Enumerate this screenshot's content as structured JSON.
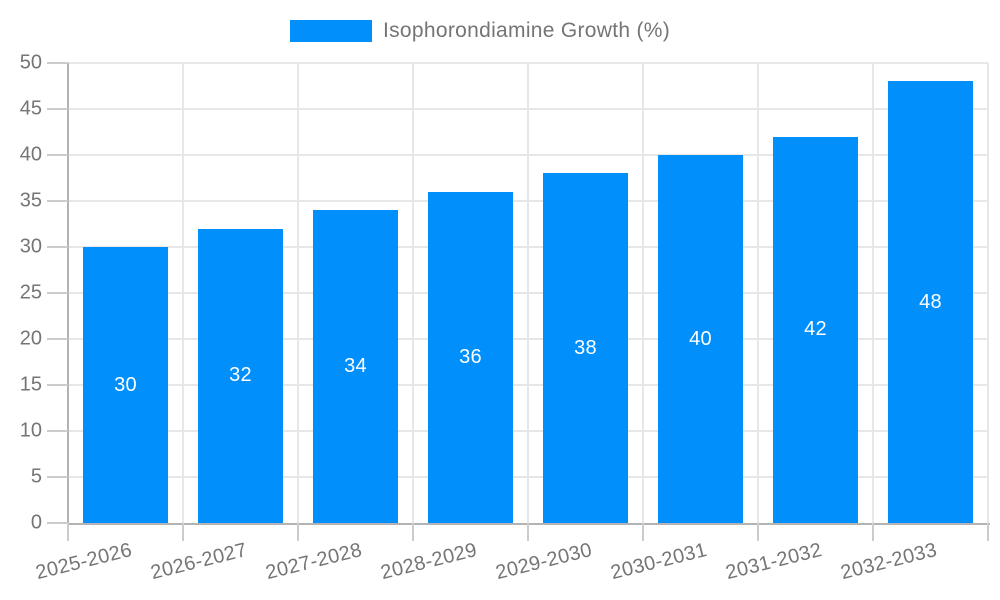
{
  "chart_data": {
    "type": "bar",
    "title": "",
    "legend": {
      "label": "Isophorondiamine Growth (%)",
      "position": "top"
    },
    "categories": [
      "2025-2026",
      "2026-2027",
      "2027-2028",
      "2028-2029",
      "2029-2030",
      "2030-2031",
      "2031-2032",
      "2032-2033"
    ],
    "values": [
      30,
      32,
      34,
      36,
      38,
      40,
      42,
      48
    ],
    "xlabel": "",
    "ylabel": "",
    "ylim": [
      0,
      50
    ],
    "yticks": [
      0,
      5,
      10,
      15,
      20,
      25,
      30,
      35,
      40,
      45,
      50
    ],
    "grid": true,
    "x_label_rotation_deg": -14,
    "colors": {
      "bar": "#008FFB",
      "bar_label": "#FFFFFF",
      "axis_text": "#757575",
      "grid_line": "#E7E7E7",
      "axis_line": "#B3B3B3",
      "tick": "#CCCCCC",
      "background": "#FFFFFF"
    }
  }
}
